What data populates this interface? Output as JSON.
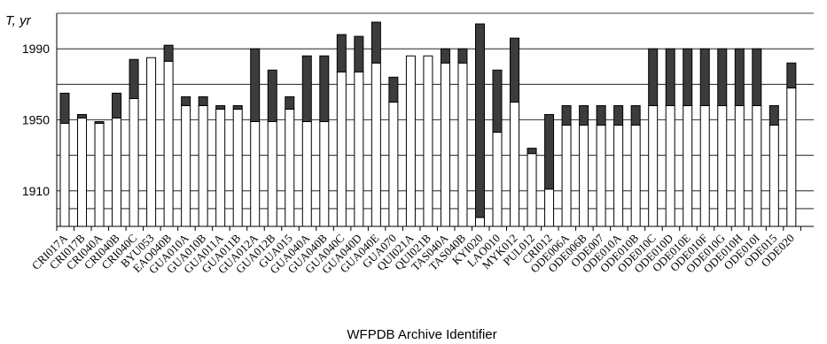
{
  "chart_data": {
    "type": "bar",
    "stacked": true,
    "ylabel": "T, yr",
    "xlabel": "WFPDB  Archive  Identifier",
    "ylim": [
      1890,
      2010
    ],
    "yticks": [
      1910,
      1950,
      1990
    ],
    "grid": true,
    "legend": "none",
    "colors": {
      "lower": "#ffffff",
      "upper": "#3c3c3c",
      "outline": "#000000",
      "grid": "#000000"
    },
    "categories": [
      "CRI017A",
      "CRI017B",
      "CRI040A",
      "CRI040B",
      "CRI040C",
      "BYU053",
      "EAO040B",
      "GUA010A",
      "GUA010B",
      "GUA011A",
      "GUA011B",
      "GUA012A",
      "GUA012B",
      "GUA015",
      "GUA040A",
      "GUA040B",
      "GUA040C",
      "GUA040D",
      "GUA040E",
      "GUA070",
      "QUI021A",
      "QUI021B",
      "TAS040A",
      "TAS040B",
      "KYI020",
      "LAO010",
      "MYK012",
      "PUL012",
      "CRI012",
      "ODE006A",
      "ODE006B",
      "ODE007",
      "ODE010A",
      "ODE010B",
      "ODE010C",
      "ODE010D",
      "ODE010E",
      "ODE010F",
      "ODE010G",
      "ODE010H",
      "ODE010I",
      "ODE015",
      "ODE020"
    ],
    "series": [
      {
        "values": [
          [
            1948,
            1965
          ],
          [
            1951,
            1953
          ],
          [
            1948,
            1949
          ],
          [
            1951,
            1965
          ],
          [
            1962,
            1984
          ],
          [
            1985,
            1985
          ],
          [
            1983,
            1992
          ],
          [
            1958,
            1963
          ],
          [
            1958,
            1963
          ],
          [
            1956,
            1958
          ],
          [
            1956,
            1958
          ],
          [
            1949,
            1990
          ],
          [
            1949,
            1978
          ],
          [
            1956,
            1963
          ],
          [
            1949,
            1986
          ],
          [
            1949,
            1986
          ],
          [
            1977,
            1998
          ],
          [
            1977,
            1997
          ],
          [
            1982,
            2005
          ],
          [
            1960,
            1974
          ],
          [
            1986,
            1986
          ],
          [
            1986,
            1986
          ],
          [
            1982,
            1990
          ],
          [
            1982,
            1990
          ],
          [
            1895,
            2004
          ],
          [
            1943,
            1978
          ],
          [
            1960,
            1996
          ],
          [
            1931,
            1934
          ],
          [
            1911,
            1953
          ],
          [
            1947,
            1958
          ],
          [
            1947,
            1958
          ],
          [
            1947,
            1958
          ],
          [
            1947,
            1958
          ],
          [
            1947,
            1958
          ],
          [
            1958,
            1990
          ],
          [
            1958,
            1990
          ],
          [
            1958,
            1990
          ],
          [
            1958,
            1990
          ],
          [
            1958,
            1990
          ],
          [
            1958,
            1990
          ],
          [
            1958,
            1990
          ],
          [
            1947,
            1958
          ],
          [
            1968,
            1982
          ]
        ]
      }
    ]
  }
}
